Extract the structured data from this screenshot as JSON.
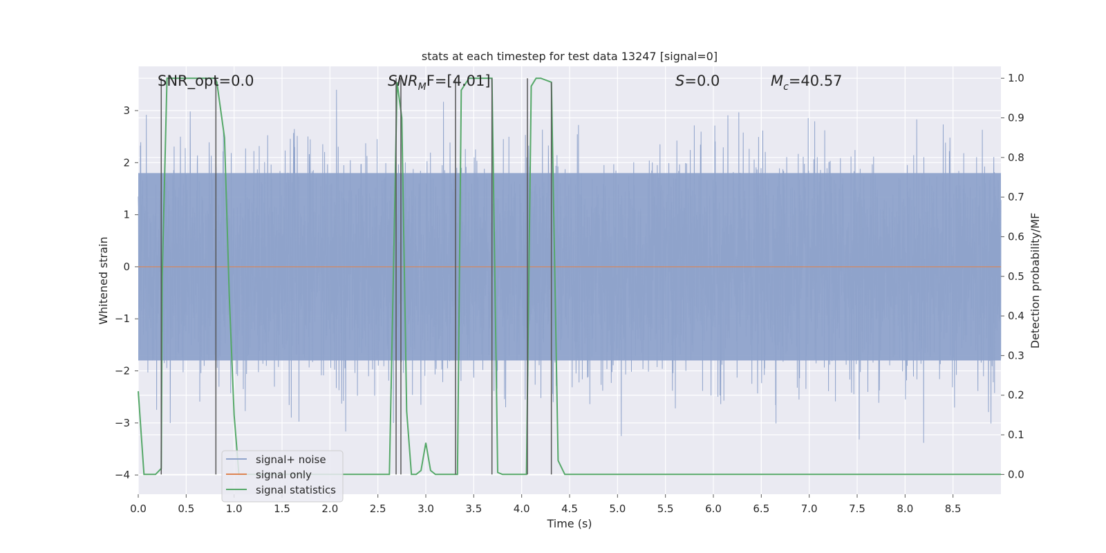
{
  "chart_data": {
    "type": "line",
    "title": "stats at each timestep for test data 13247 [signal=0]",
    "xlabel": "Time (s)",
    "ylabel_left": "Whitened strain",
    "ylabel_right": "Detection probability/MF",
    "xlim": [
      0.0,
      9.0
    ],
    "ylim_left": [
      -4.37,
      3.85
    ],
    "ylim_right": [
      -0.05,
      1.03
    ],
    "xticks": [
      0.0,
      0.5,
      1.0,
      1.5,
      2.0,
      2.5,
      3.0,
      3.5,
      4.0,
      4.5,
      5.0,
      5.5,
      6.0,
      6.5,
      7.0,
      7.5,
      8.0,
      8.5
    ],
    "xtick_labels": [
      "0.0",
      "0.5",
      "1.0",
      "1.5",
      "2.0",
      "2.5",
      "3.0",
      "3.5",
      "4.0",
      "4.5",
      "5.0",
      "5.5",
      "6.0",
      "6.5",
      "7.0",
      "7.5",
      "8.0",
      "8.5"
    ],
    "yticks_left": [
      -4,
      -3,
      -2,
      -1,
      0,
      1,
      2,
      3
    ],
    "ytick_labels_left": [
      "−4",
      "−3",
      "−2",
      "−1",
      "0",
      "1",
      "2",
      "3"
    ],
    "yticks_right": [
      0.0,
      0.1,
      0.2,
      0.3,
      0.4,
      0.5,
      0.6,
      0.7,
      0.8,
      0.9,
      1.0
    ],
    "ytick_labels_right": [
      "0.0",
      "0.1",
      "0.2",
      "0.3",
      "0.4",
      "0.5",
      "0.6",
      "0.7",
      "0.8",
      "0.9",
      "1.0"
    ],
    "annotations": {
      "snr_opt": "SNR_opt=0.0",
      "snr_mf_main": "SNR",
      "snr_mf_sub": "M",
      "snr_mf_rest": "F=[4.01]",
      "s_main": "S",
      "s_rest": "=0.0",
      "mc_main": "M",
      "mc_sub": "c",
      "mc_rest": "=40.57"
    },
    "legend": {
      "position": "lower-left",
      "entries": [
        {
          "label": "signal+ noise",
          "color": "#8fa3cb"
        },
        {
          "label": "signal only",
          "color": "#dd8452"
        },
        {
          "label": "signal statistics",
          "color": "#55a868"
        }
      ]
    },
    "series": [
      {
        "name": "signal+ noise",
        "axis": "left",
        "color": "#8fa3cb",
        "kind": "noise",
        "n_samples": 4500,
        "seed": 13247,
        "std": 1.0,
        "core_amplitude": 1.8,
        "x_range": [
          0.0,
          9.0
        ]
      },
      {
        "name": "signal only",
        "axis": "left",
        "color": "#dd8452",
        "x": [
          0.0,
          9.0
        ],
        "y": [
          0.0,
          0.0
        ]
      },
      {
        "name": "signal statistics",
        "axis": "right",
        "color": "#55a868",
        "x": [
          0.0,
          0.06,
          0.18,
          0.24,
          0.25,
          0.3,
          0.32,
          0.5,
          0.6,
          0.7,
          0.8,
          0.82,
          0.9,
          0.95,
          1.0,
          1.05,
          2.62,
          2.67,
          2.7,
          2.75,
          2.8,
          2.85,
          2.9,
          2.95,
          3.0,
          3.05,
          3.1,
          3.2,
          3.33,
          3.37,
          3.45,
          3.5,
          3.6,
          3.69,
          3.75,
          3.8,
          3.9,
          4.05,
          4.1,
          4.15,
          4.2,
          4.31,
          4.38,
          4.45,
          9.0
        ],
        "y": [
          0.21,
          0.0,
          0.0,
          0.015,
          0.5,
          1.0,
          1.0,
          1.0,
          1.0,
          1.0,
          1.0,
          0.99,
          0.85,
          0.45,
          0.15,
          0.0,
          0.0,
          0.6,
          0.99,
          0.9,
          0.16,
          0.0,
          0.0,
          0.01,
          0.08,
          0.01,
          0.0,
          0.0,
          0.0,
          0.97,
          1.0,
          1.0,
          1.0,
          1.0,
          0.005,
          0.0,
          0.0,
          0.0,
          0.98,
          1.0,
          1.0,
          0.99,
          0.035,
          0.0,
          0.0
        ]
      },
      {
        "name": "detection markers",
        "axis": "right",
        "color": "#555555",
        "kind": "vlines",
        "x": [
          0.24,
          0.81,
          2.69,
          2.74,
          3.31,
          3.69,
          4.06,
          4.31
        ],
        "y_top": [
          1.0,
          1.0,
          1.0,
          1.0,
          1.0,
          1.0,
          1.0,
          0.99
        ],
        "y_bottom": [
          0.0,
          0.0,
          0.0,
          0.0,
          0.0,
          0.0,
          0.0,
          0.0
        ]
      }
    ]
  }
}
